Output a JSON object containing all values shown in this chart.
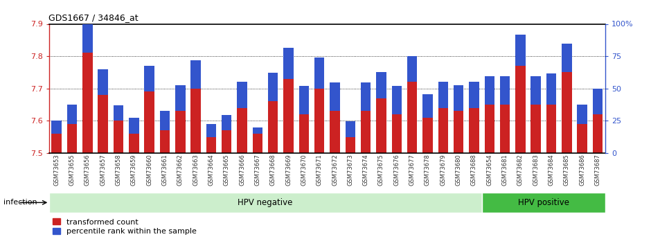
{
  "title": "GDS1667 / 34846_at",
  "samples": [
    "GSM73653",
    "GSM73655",
    "GSM73656",
    "GSM73657",
    "GSM73658",
    "GSM73659",
    "GSM73660",
    "GSM73661",
    "GSM73662",
    "GSM73663",
    "GSM73664",
    "GSM73665",
    "GSM73666",
    "GSM73667",
    "GSM73668",
    "GSM73669",
    "GSM73670",
    "GSM73671",
    "GSM73672",
    "GSM73673",
    "GSM73674",
    "GSM73675",
    "GSM73676",
    "GSM73677",
    "GSM73678",
    "GSM73679",
    "GSM73680",
    "GSM73688",
    "GSM73654",
    "GSM73681",
    "GSM73682",
    "GSM73683",
    "GSM73684",
    "GSM73685",
    "GSM73686",
    "GSM73687"
  ],
  "transformed_counts": [
    7.56,
    7.59,
    7.81,
    7.68,
    7.6,
    7.56,
    7.69,
    7.57,
    7.63,
    7.7,
    7.55,
    7.57,
    7.64,
    7.56,
    7.66,
    7.73,
    7.62,
    7.7,
    7.63,
    7.55,
    7.63,
    7.67,
    7.62,
    7.72,
    7.61,
    7.64,
    7.63,
    7.64,
    7.65,
    7.65,
    7.77,
    7.65,
    7.65,
    7.75,
    7.59,
    7.62
  ],
  "percentile_ranks": [
    10,
    15,
    22,
    20,
    12,
    12,
    20,
    15,
    20,
    22,
    10,
    12,
    20,
    5,
    22,
    24,
    22,
    24,
    22,
    12,
    22,
    20,
    22,
    20,
    18,
    20,
    20,
    20,
    22,
    22,
    24,
    22,
    24,
    22,
    15,
    20
  ],
  "hpv_negative_count": 28,
  "hpv_positive_count": 8,
  "y_min": 7.5,
  "y_max": 7.9,
  "y_ticks": [
    7.5,
    7.6,
    7.7,
    7.8,
    7.9
  ],
  "y2_ticks": [
    0,
    25,
    50,
    75,
    100
  ],
  "bar_color_red": "#cc2222",
  "bar_color_blue": "#3355cc",
  "hpv_neg_color": "#cceecc",
  "hpv_pos_color": "#44bb44",
  "tick_bg_color": "#cccccc",
  "infection_label": "infection",
  "label_red": "transformed count",
  "label_blue": "percentile rank within the sample",
  "blue_segment_scale": 0.004
}
